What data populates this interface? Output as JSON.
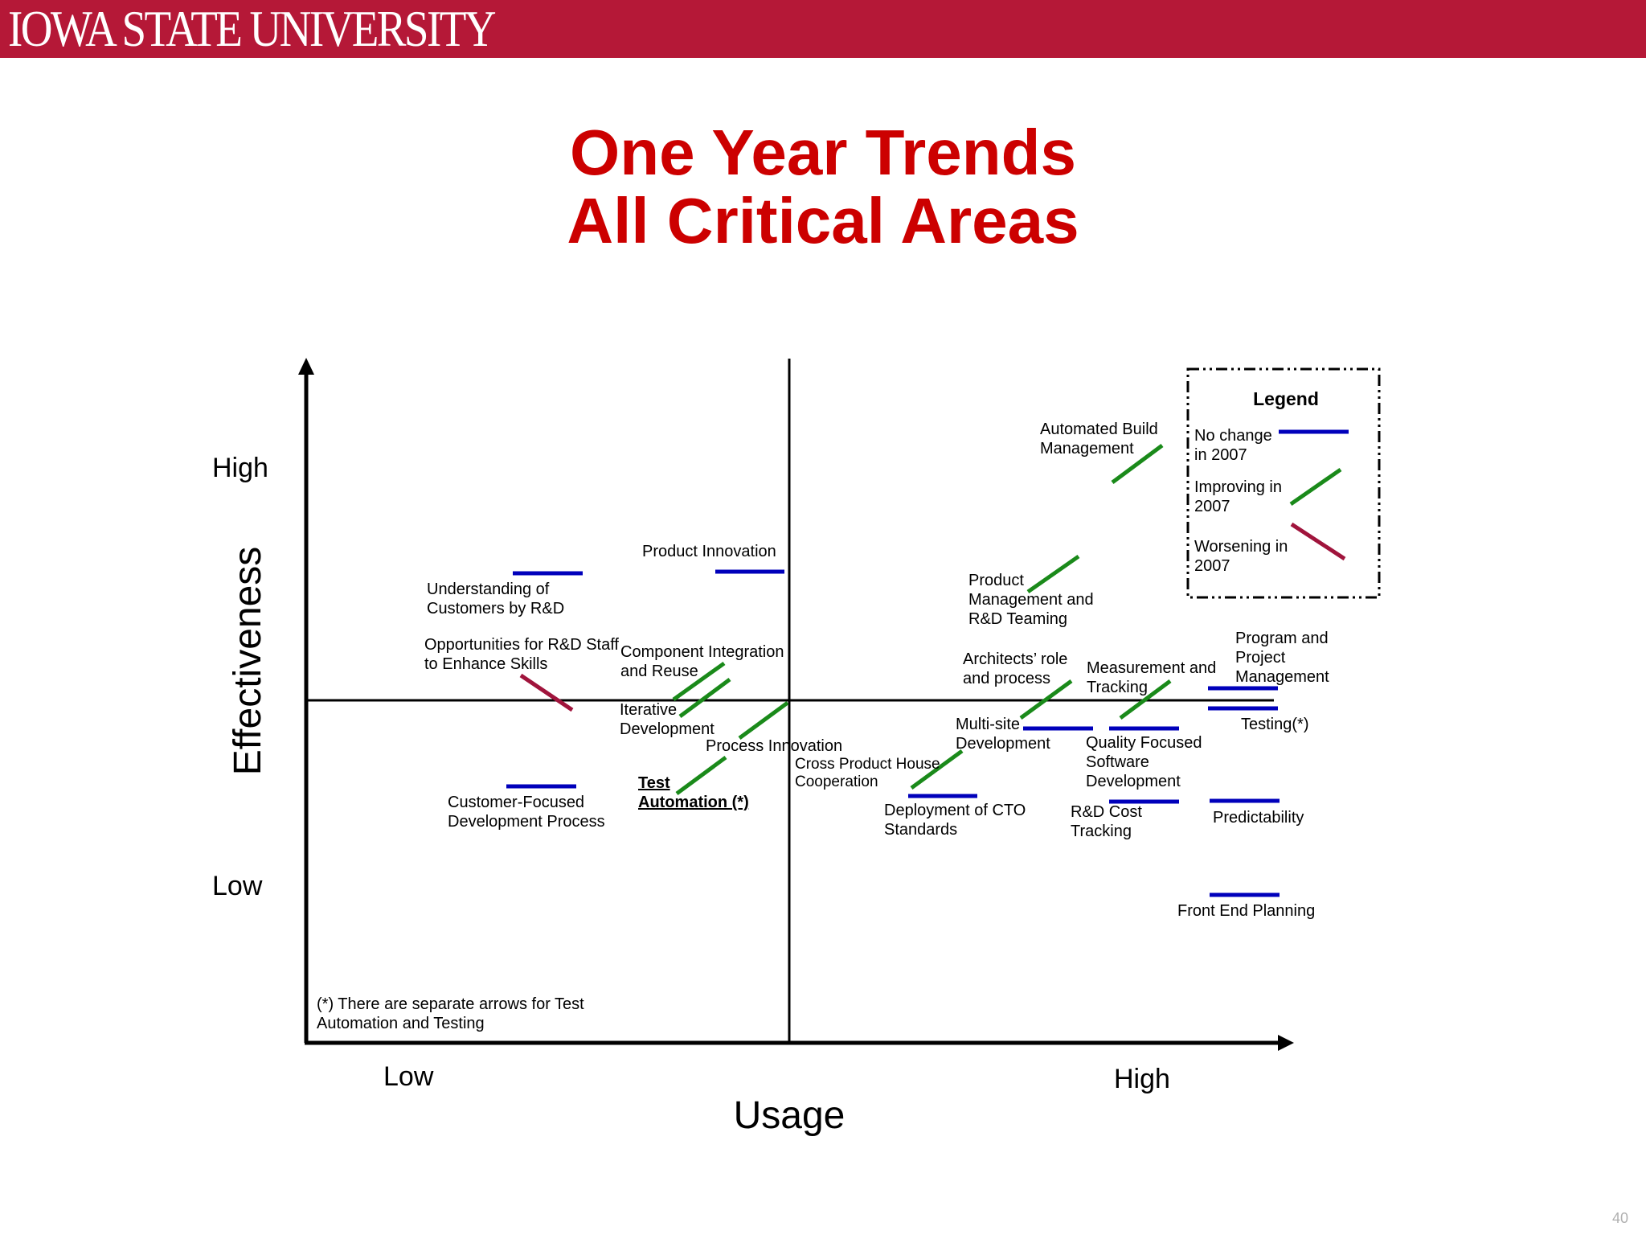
{
  "header": {
    "logo_text": "IOWA STATE UNIVERSITY",
    "color": "#b51837"
  },
  "slide": {
    "title_line1": "One Year Trends",
    "title_line2": "All Critical Areas",
    "page_number": "40",
    "footnote_line1": "(*) There are separate arrows for Test",
    "footnote_line2": "Automation and Testing"
  },
  "chart_data": {
    "type": "scatter",
    "xlabel": "Usage",
    "ylabel": "Effectiveness",
    "x_ticks": [
      "Low",
      "High"
    ],
    "y_ticks": [
      "High",
      "Low"
    ],
    "legend": {
      "title": "Legend",
      "placement": "top-right",
      "entries": [
        {
          "text": [
            "No change",
            "in 2007"
          ],
          "trend": "no_change",
          "color": "#0000bb"
        },
        {
          "text": [
            "Improving in",
            "2007"
          ],
          "trend": "improving",
          "color": "#1a8a1a"
        },
        {
          "text": [
            "Worsening in",
            "2007"
          ],
          "trend": "worsening",
          "color": "#a0143c"
        }
      ]
    },
    "items": [
      {
        "name": "Understanding of Customers by R&D",
        "lines": [
          "Understanding of",
          "Customers by R&D"
        ],
        "trend": "no_change"
      },
      {
        "name": "Product Innovation",
        "lines": [
          "Product Innovation"
        ],
        "trend": "no_change"
      },
      {
        "name": "Opportunities for R&D Staff to Enhance Skills",
        "lines": [
          "Opportunities for R&D Staff",
          "to Enhance Skills"
        ],
        "trend": "worsening"
      },
      {
        "name": "Component Integration and Reuse",
        "lines": [
          "Component Integration",
          "and Reuse"
        ],
        "trend": "improving"
      },
      {
        "name": "Iterative Development",
        "lines": [
          "Iterative",
          "Development"
        ],
        "trend": "improving"
      },
      {
        "name": "Process Innovation",
        "lines": [
          "Process Innovation"
        ],
        "trend": "improving"
      },
      {
        "name": "Test Automation (*)",
        "lines": [
          "Test",
          "Automation (*)"
        ],
        "trend": "improving",
        "emphasis": true
      },
      {
        "name": "Customer-Focused Development Process",
        "lines": [
          "Customer-Focused",
          "Development Process"
        ],
        "trend": "no_change"
      },
      {
        "name": "Cross Product House Cooperation",
        "lines": [
          "Cross Product House",
          "Cooperation"
        ],
        "trend": "improving"
      },
      {
        "name": "Deployment of CTO Standards",
        "lines": [
          "Deployment of CTO",
          "Standards"
        ],
        "trend": "no_change"
      },
      {
        "name": "Automated Build Management",
        "lines": [
          "Automated Build",
          "Management"
        ],
        "trend": "improving"
      },
      {
        "name": "Product Management and R&D Teaming",
        "lines": [
          "Product",
          "Management and",
          "R&D Teaming"
        ],
        "trend": "improving"
      },
      {
        "name": "Architects’ role and process",
        "lines": [
          "Architects’ role",
          "and process"
        ],
        "trend": "improving"
      },
      {
        "name": "Multi-site Development",
        "lines": [
          "Multi-site",
          "Development"
        ],
        "trend": "no_change"
      },
      {
        "name": "Measurement and Tracking",
        "lines": [
          "Measurement and",
          "Tracking"
        ],
        "trend": "improving"
      },
      {
        "name": "Quality Focused Software Development",
        "lines": [
          "Quality Focused",
          "Software",
          "Development"
        ],
        "trend": "no_change"
      },
      {
        "name": "R&D Cost Tracking",
        "lines": [
          "R&D Cost",
          "Tracking"
        ],
        "trend": "no_change"
      },
      {
        "name": "Program and Project Management",
        "lines": [
          "Program and",
          "Project",
          "Management"
        ],
        "trend": "no_change"
      },
      {
        "name": "Testing(*)",
        "lines": [
          "Testing(*)"
        ],
        "trend": "no_change"
      },
      {
        "name": "Predictability",
        "lines": [
          "Predictability"
        ],
        "trend": "no_change"
      },
      {
        "name": "Front End Planning",
        "lines": [
          "Front End Planning"
        ],
        "trend": "no_change"
      }
    ]
  }
}
